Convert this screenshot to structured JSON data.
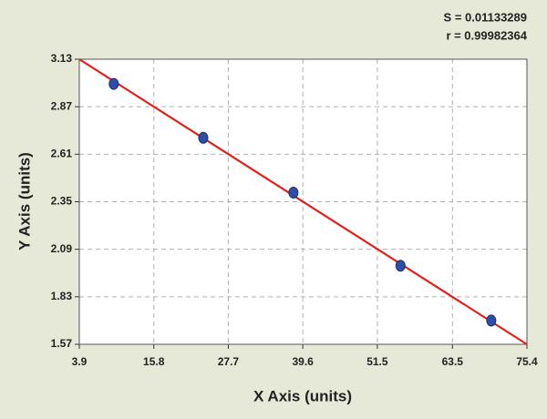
{
  "chart_data": {
    "type": "scatter",
    "annotations": [
      "S = 0.01133289",
      "r = 0.99982364"
    ],
    "x_label": "X Axis (units)",
    "y_label": "Y Axis (units)",
    "x": [
      9.4,
      23.7,
      38.1,
      55.2,
      69.7
    ],
    "values": [
      2.995,
      2.7,
      2.4,
      2.0,
      1.7
    ],
    "color": "#2e4fa8",
    "fit_line": {
      "x": [
        3.9,
        75.4
      ],
      "y": [
        3.13,
        1.57
      ],
      "color": "#e0201b"
    },
    "xlim": [
      3.9,
      75.4
    ],
    "xticks": [
      3.9,
      15.8,
      27.7,
      39.6,
      51.5,
      63.5,
      75.4
    ],
    "ylim": [
      1.57,
      3.13
    ],
    "yticks": [
      1.57,
      1.83,
      2.09,
      2.35,
      2.61,
      2.87,
      3.13
    ],
    "grid": true
  }
}
